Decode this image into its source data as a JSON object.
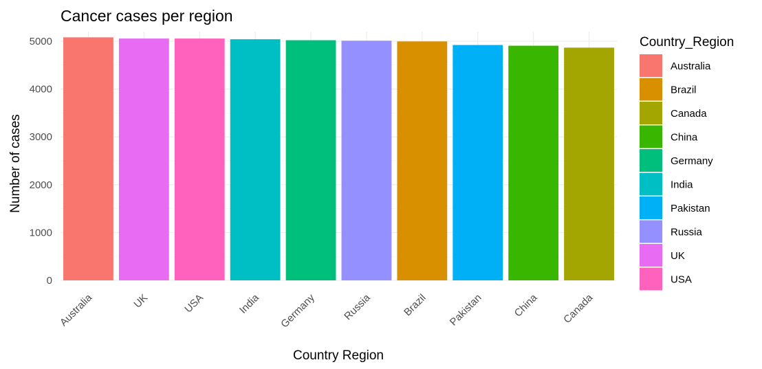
{
  "chart_data": {
    "type": "bar",
    "title": "Cancer cases per region",
    "xlabel": "Country Region",
    "ylabel": "Number of cases",
    "categories": [
      "Australia",
      "UK",
      "USA",
      "India",
      "Germany",
      "Russia",
      "Brazil",
      "Pakistan",
      "China",
      "Canada"
    ],
    "values": [
      5080,
      5055,
      5055,
      5040,
      5020,
      5010,
      4995,
      4920,
      4905,
      4865
    ],
    "ylim": [
      0,
      5200
    ],
    "yticks": [
      0,
      1000,
      2000,
      3000,
      4000,
      5000
    ],
    "grid": true,
    "legend": {
      "title": "Country_Region",
      "placement": "right",
      "entries": [
        "Australia",
        "Brazil",
        "Canada",
        "China",
        "Germany",
        "India",
        "Pakistan",
        "Russia",
        "UK",
        "USA"
      ]
    },
    "colors": {
      "Australia": "#F8766D",
      "Brazil": "#D89000",
      "Canada": "#A3A500",
      "China": "#39B600",
      "Germany": "#00BF7D",
      "India": "#00BFC4",
      "Pakistan": "#00B0F6",
      "Russia": "#9590FF",
      "UK": "#E76BF3",
      "USA": "#FF62BC"
    }
  }
}
